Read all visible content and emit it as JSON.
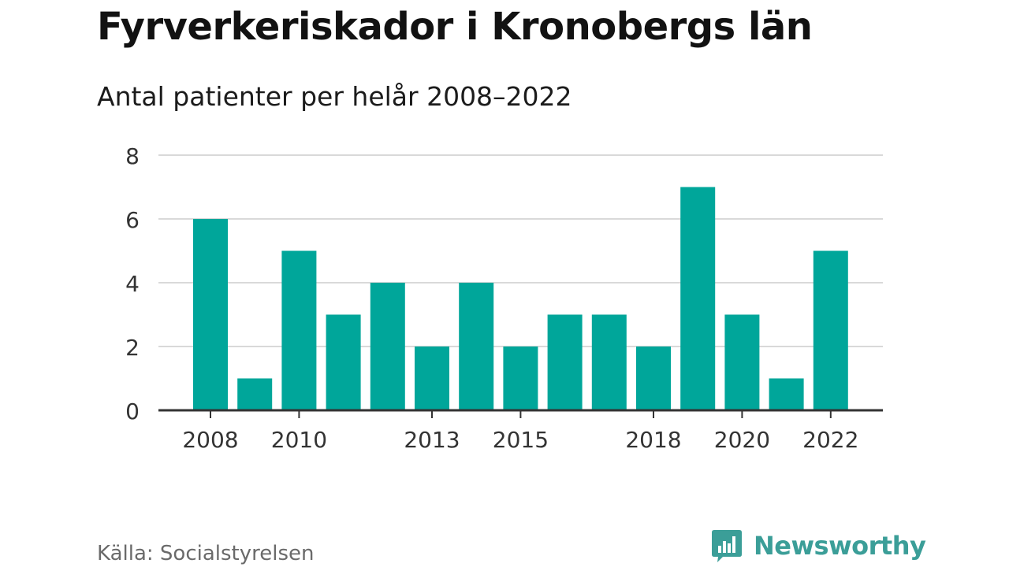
{
  "title": "Fyrverkeriskador i Kronobergs län",
  "subtitle": "Antal patienter per helår 2008–2022",
  "source": "Källa: Socialstyrelsen",
  "brand": {
    "name": "Newsworthy",
    "icon": "bar-chart-logo-icon",
    "color": "#3b9e98"
  },
  "colors": {
    "bar": "#00a69a",
    "grid": "#d9d9d9",
    "axis": "#333333",
    "tick_text": "#333333"
  },
  "chart_data": {
    "type": "bar",
    "title": "Fyrverkeriskador i Kronobergs län",
    "subtitle": "Antal patienter per helår 2008–2022",
    "categories": [
      "2008",
      "2009",
      "2010",
      "2011",
      "2012",
      "2013",
      "2014",
      "2015",
      "2016",
      "2017",
      "2018",
      "2019",
      "2020",
      "2021",
      "2022"
    ],
    "values": [
      6,
      1,
      5,
      3,
      4,
      2,
      4,
      2,
      3,
      3,
      2,
      7,
      3,
      1,
      5
    ],
    "x_tick_labels": [
      "2008",
      "2010",
      "2013",
      "2015",
      "2018",
      "2020",
      "2022"
    ],
    "y_ticks": [
      0,
      2,
      4,
      6,
      8
    ],
    "ylim": [
      0,
      8
    ],
    "xlabel": "",
    "ylabel": "",
    "grid": true,
    "legend": false
  }
}
